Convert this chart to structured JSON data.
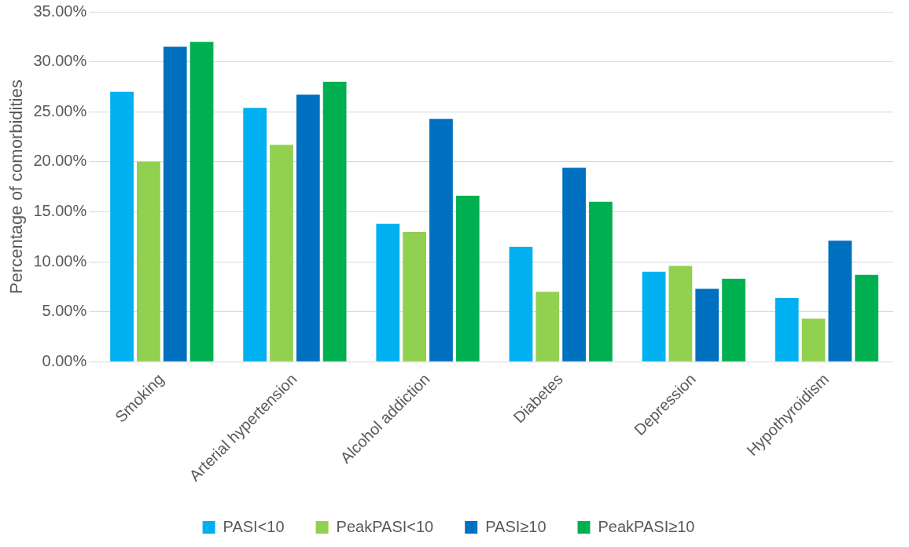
{
  "chart_data": {
    "type": "bar",
    "ylabel": "Percentage of comorbidities",
    "categories": [
      "Smoking",
      "Arterial hypertension",
      "Alcohol addiction",
      "Diabetes",
      "Depression",
      "Hypothyroidism"
    ],
    "series": [
      {
        "name": "PASI<10",
        "color": "#00b0f0",
        "values": [
          27.0,
          25.4,
          13.8,
          11.5,
          9.0,
          6.4
        ]
      },
      {
        "name": "PeakPASI<10",
        "color": "#92d050",
        "values": [
          20.0,
          21.7,
          13.0,
          7.0,
          9.6,
          4.3
        ]
      },
      {
        "name": "PASI≥10",
        "color": "#0070c0",
        "values": [
          31.5,
          26.7,
          24.3,
          19.4,
          7.3,
          12.1
        ]
      },
      {
        "name": "PeakPASI≥10",
        "color": "#00b050",
        "values": [
          32.0,
          28.0,
          16.6,
          16.0,
          8.3,
          8.7
        ]
      }
    ],
    "ylim": [
      0,
      35
    ],
    "yticks": [
      {
        "value": 0,
        "label": "0.00%"
      },
      {
        "value": 5,
        "label": "5.00%"
      },
      {
        "value": 10,
        "label": "10.00%"
      },
      {
        "value": 15,
        "label": "15.00%"
      },
      {
        "value": 20,
        "label": "20.00%"
      },
      {
        "value": 25,
        "label": "25.00%"
      },
      {
        "value": 30,
        "label": "30.00%"
      },
      {
        "value": 35,
        "label": "35.00%"
      }
    ],
    "grid": "y",
    "legend": "bottom"
  }
}
